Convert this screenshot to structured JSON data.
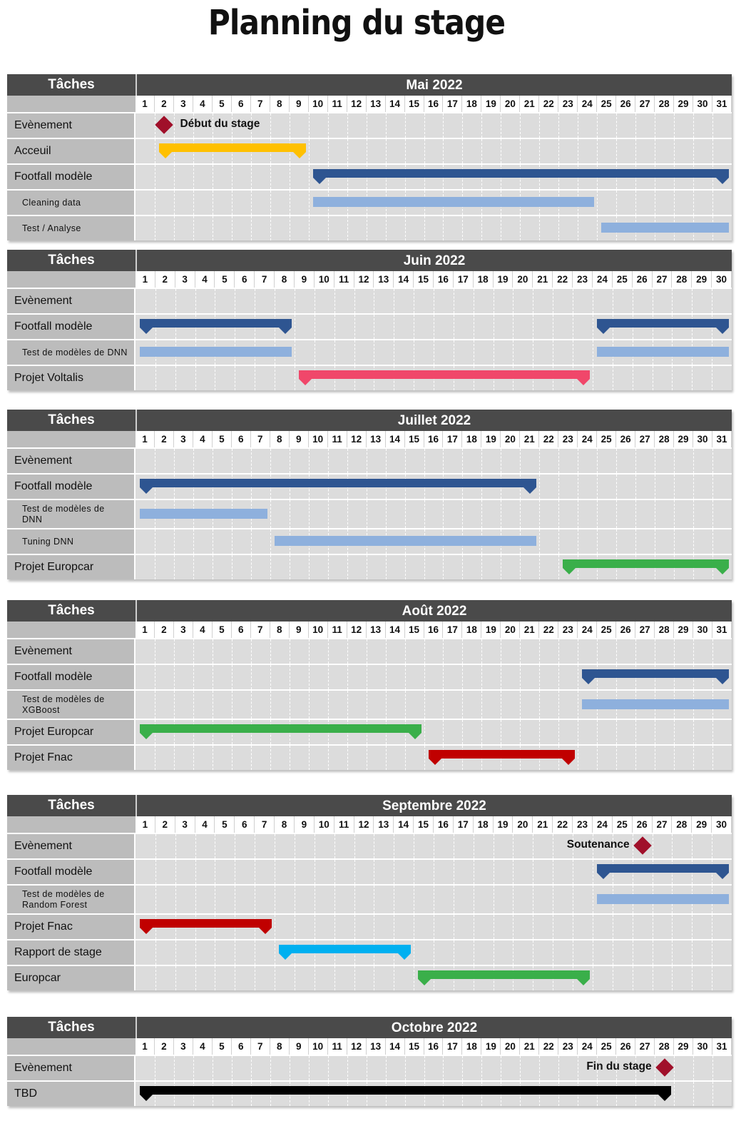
{
  "page_title": "Planning du stage",
  "tasks_header": "Tâches",
  "colors": {
    "header": "#4a4a4a",
    "label_bg": "#bcbcbc",
    "grid_bg": "#dcdcdc",
    "dark_blue": "#2e5591",
    "light_blue": "#8eb0dd",
    "yellow": "#ffc000",
    "pink": "#f0476a",
    "green": "#3aaf4a",
    "red": "#c00000",
    "cyan": "#00b0f0",
    "black": "#000000",
    "milestone": "#a0102a"
  },
  "sections": [
    {
      "month": "Mai 2022",
      "days": 31,
      "rows": [
        {
          "label": "Evènement",
          "type": "main",
          "milestones": [
            {
              "day": 2,
              "label": "Début du stage",
              "label_side": "right"
            }
          ]
        },
        {
          "label": "Acceuil",
          "type": "main",
          "bars": [
            {
              "start": 2,
              "end": 9,
              "color": "yellow",
              "kind": "summary"
            }
          ]
        },
        {
          "label": "Footfall modèle",
          "type": "main",
          "bars": [
            {
              "start": 10,
              "end": 31,
              "color": "dark_blue",
              "kind": "summary"
            }
          ]
        },
        {
          "label": "Cleaning data",
          "type": "sub",
          "bars": [
            {
              "start": 10,
              "end": 24,
              "color": "light_blue",
              "kind": "task"
            }
          ]
        },
        {
          "label": "Test / Analyse",
          "type": "sub",
          "bars": [
            {
              "start": 25,
              "end": 31,
              "color": "light_blue",
              "kind": "task"
            }
          ]
        }
      ]
    },
    {
      "month": "Juin 2022",
      "days": 30,
      "rows": [
        {
          "label": "Evènement",
          "type": "main"
        },
        {
          "label": "Footfall modèle",
          "type": "main",
          "bars": [
            {
              "start": 1,
              "end": 8,
              "color": "dark_blue",
              "kind": "summary"
            },
            {
              "start": 24,
              "end": 30,
              "color": "dark_blue",
              "kind": "summary"
            }
          ]
        },
        {
          "label": "Test de modèles de DNN",
          "type": "sub",
          "bars": [
            {
              "start": 1,
              "end": 8,
              "color": "light_blue",
              "kind": "task"
            },
            {
              "start": 24,
              "end": 30,
              "color": "light_blue",
              "kind": "task"
            }
          ]
        },
        {
          "label": "Projet Voltalis",
          "type": "main",
          "bars": [
            {
              "start": 9,
              "end": 23,
              "color": "pink",
              "kind": "summary"
            }
          ]
        }
      ]
    },
    {
      "month": "Juillet 2022",
      "days": 31,
      "rows": [
        {
          "label": "Evènement",
          "type": "main"
        },
        {
          "label": "Footfall modèle",
          "type": "main",
          "bars": [
            {
              "start": 1,
              "end": 21,
              "color": "dark_blue",
              "kind": "summary"
            }
          ]
        },
        {
          "label": "Test de modèles de DNN",
          "type": "sub",
          "tall": true,
          "bars": [
            {
              "start": 1,
              "end": 7,
              "color": "light_blue",
              "kind": "task"
            }
          ]
        },
        {
          "label": "Tuning DNN",
          "type": "sub",
          "bars": [
            {
              "start": 8,
              "end": 21,
              "color": "light_blue",
              "kind": "task"
            }
          ]
        },
        {
          "label": "Projet Europcar",
          "type": "main",
          "bars": [
            {
              "start": 23,
              "end": 31,
              "color": "green",
              "kind": "summary"
            }
          ]
        }
      ]
    },
    {
      "month": "Août 2022",
      "days": 31,
      "rows": [
        {
          "label": "Evènement",
          "type": "main"
        },
        {
          "label": "Footfall modèle",
          "type": "main",
          "bars": [
            {
              "start": 24,
              "end": 31,
              "color": "dark_blue",
              "kind": "summary"
            }
          ]
        },
        {
          "label": "Test de modèles de XGBoost",
          "type": "sub",
          "tall": true,
          "bars": [
            {
              "start": 24,
              "end": 31,
              "color": "light_blue",
              "kind": "task"
            }
          ]
        },
        {
          "label": "Projet Europcar",
          "type": "main",
          "bars": [
            {
              "start": 1,
              "end": 15,
              "color": "green",
              "kind": "summary"
            }
          ]
        },
        {
          "label": "Projet Fnac",
          "type": "main",
          "bars": [
            {
              "start": 16,
              "end": 23,
              "color": "red",
              "kind": "summary"
            }
          ]
        }
      ]
    },
    {
      "month": "Septembre 2022",
      "days": 30,
      "rows": [
        {
          "label": "Evènement",
          "type": "main",
          "milestones": [
            {
              "day": 26,
              "label": "Soutenance",
              "label_side": "left"
            }
          ]
        },
        {
          "label": "Footfall modèle",
          "type": "main",
          "bars": [
            {
              "start": 24,
              "end": 30,
              "color": "dark_blue",
              "kind": "summary"
            }
          ]
        },
        {
          "label": "Test de modèles de Random Forest",
          "type": "sub",
          "tall": true,
          "bars": [
            {
              "start": 24,
              "end": 30,
              "color": "light_blue",
              "kind": "task"
            }
          ]
        },
        {
          "label": "Projet Fnac",
          "type": "main",
          "bars": [
            {
              "start": 1,
              "end": 7,
              "color": "red",
              "kind": "summary"
            }
          ]
        },
        {
          "label": "Rapport de stage",
          "type": "main",
          "bars": [
            {
              "start": 8,
              "end": 14,
              "color": "cyan",
              "kind": "summary"
            }
          ]
        },
        {
          "label": "Europcar",
          "type": "main",
          "bars": [
            {
              "start": 15,
              "end": 23,
              "color": "green",
              "kind": "summary"
            }
          ]
        }
      ]
    },
    {
      "month": "Octobre 2022",
      "days": 31,
      "rows": [
        {
          "label": "Evènement",
          "type": "main",
          "milestones": [
            {
              "day": 28,
              "label": "Fin du stage",
              "label_side": "left"
            }
          ]
        },
        {
          "label": "TBD",
          "type": "main",
          "bars": [
            {
              "start": 1,
              "end": 28,
              "color": "black",
              "kind": "summary"
            }
          ]
        }
      ]
    }
  ]
}
